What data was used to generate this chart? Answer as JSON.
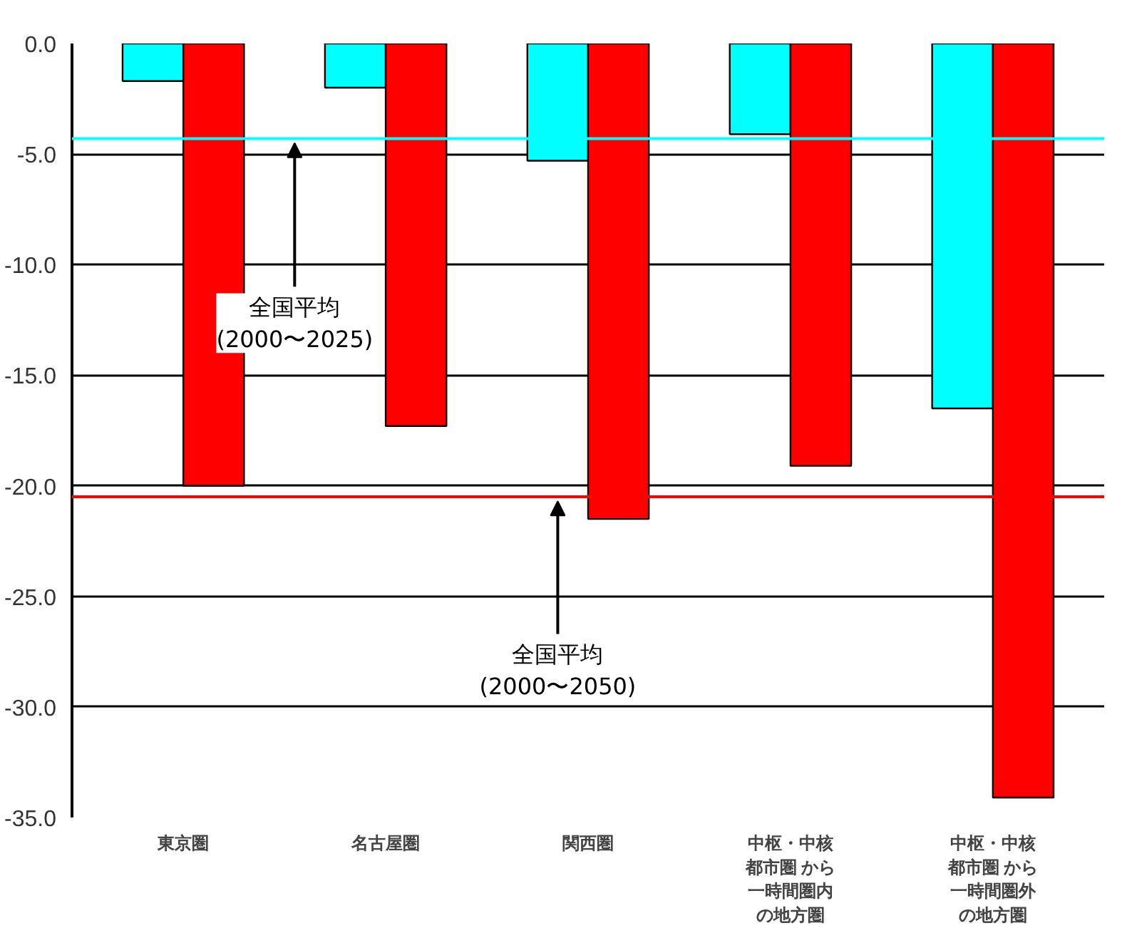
{
  "chart_data": {
    "type": "bar",
    "categories": [
      "東京圏",
      "名古屋圏",
      "関西圏",
      "中枢・中核都市圏 から一時間圏内の地方圏",
      "中枢・中核都市圏 から一時間圏外の地方圏"
    ],
    "series": [
      {
        "color": "#00ffff",
        "values": [
          -1.7,
          -2.0,
          -5.3,
          -4.1,
          -16.5
        ]
      },
      {
        "color": "#ff0000",
        "values": [
          -20.0,
          -17.3,
          -21.5,
          -19.1,
          -34.1
        ]
      }
    ],
    "ylim": [
      -35,
      0
    ],
    "yticks": [
      {
        "value": 0,
        "label": "0.0"
      },
      {
        "value": -5,
        "label": "-5.0"
      },
      {
        "value": -10,
        "label": "-10.0"
      },
      {
        "value": -15,
        "label": "-15.0"
      },
      {
        "value": -20,
        "label": "-20.0"
      },
      {
        "value": -25,
        "label": "-25.0"
      },
      {
        "value": -30,
        "label": "-30.0"
      },
      {
        "value": -35,
        "label": "-35.0"
      }
    ],
    "grid": "y",
    "ref_lines": [
      {
        "axis": "y",
        "value": -4.3,
        "label": "全国平均\n(2000〜2025)",
        "color": "#00ffff"
      },
      {
        "axis": "y",
        "value": -20.5,
        "label": "全国平均\n(2000〜2050)",
        "color": "#ff0000"
      }
    ]
  }
}
